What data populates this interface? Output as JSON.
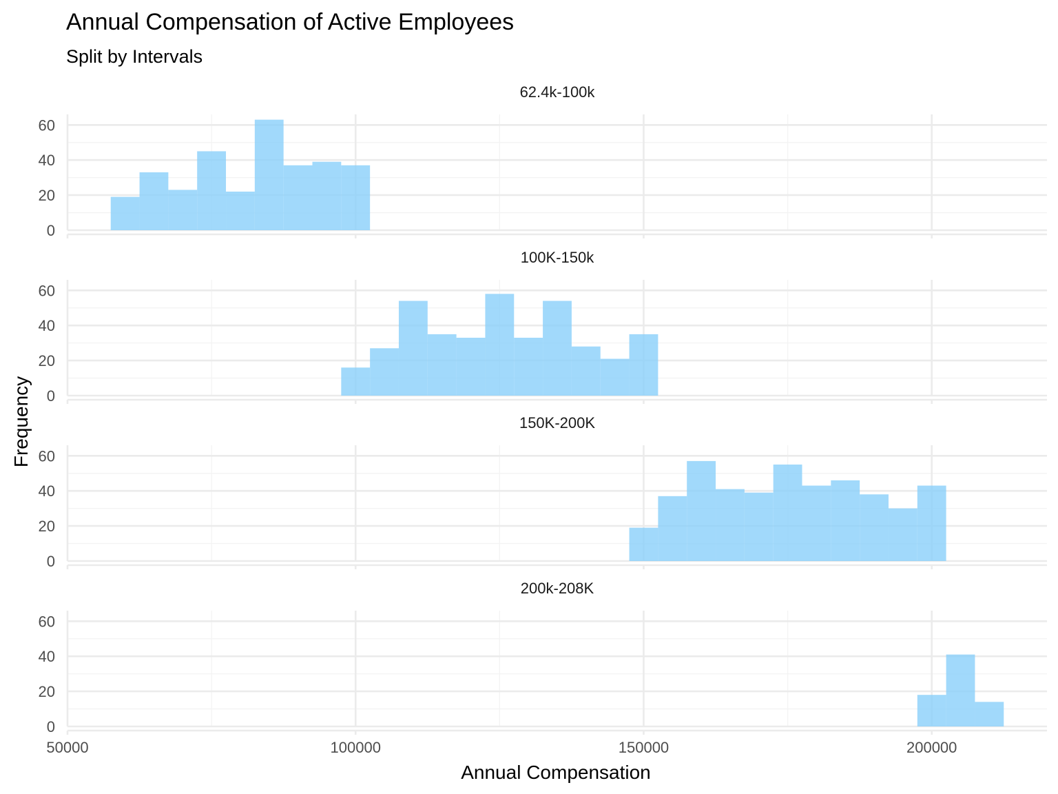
{
  "chart_data": {
    "type": "bar",
    "title": "Annual Compensation of Active Employees",
    "subtitle": "Split by Intervals",
    "xlabel": "Annual Compensation",
    "ylabel": "Frequency",
    "xlim": [
      50000,
      220000
    ],
    "ylim": [
      0,
      66
    ],
    "x_ticks": [
      "50000",
      "100000",
      "150000",
      "200000"
    ],
    "y_ticks": [
      "0",
      "20",
      "40",
      "60"
    ],
    "bin_width": 5000,
    "bar_color": "#87CEFA",
    "grid": true,
    "legend": "none",
    "panels": [
      {
        "label": "62.4k-100k",
        "bin_centers": [
          60000,
          65000,
          70000,
          75000,
          80000,
          85000,
          90000,
          95000,
          100000
        ],
        "values": [
          19,
          33,
          23,
          45,
          22,
          63,
          37,
          39,
          37
        ]
      },
      {
        "label": "100K-150k",
        "bin_centers": [
          100000,
          105000,
          110000,
          115000,
          120000,
          125000,
          130000,
          135000,
          140000,
          145000,
          150000
        ],
        "values": [
          16,
          27,
          54,
          35,
          33,
          58,
          33,
          54,
          28,
          21,
          35
        ]
      },
      {
        "label": "150K-200K",
        "bin_centers": [
          150000,
          155000,
          160000,
          165000,
          170000,
          175000,
          180000,
          185000,
          190000,
          195000,
          200000
        ],
        "values": [
          19,
          37,
          57,
          41,
          39,
          55,
          43,
          46,
          38,
          30,
          43
        ]
      },
      {
        "label": "200k-208K",
        "bin_centers": [
          200000,
          205000,
          210000
        ],
        "values": [
          18,
          41,
          14
        ]
      }
    ]
  }
}
